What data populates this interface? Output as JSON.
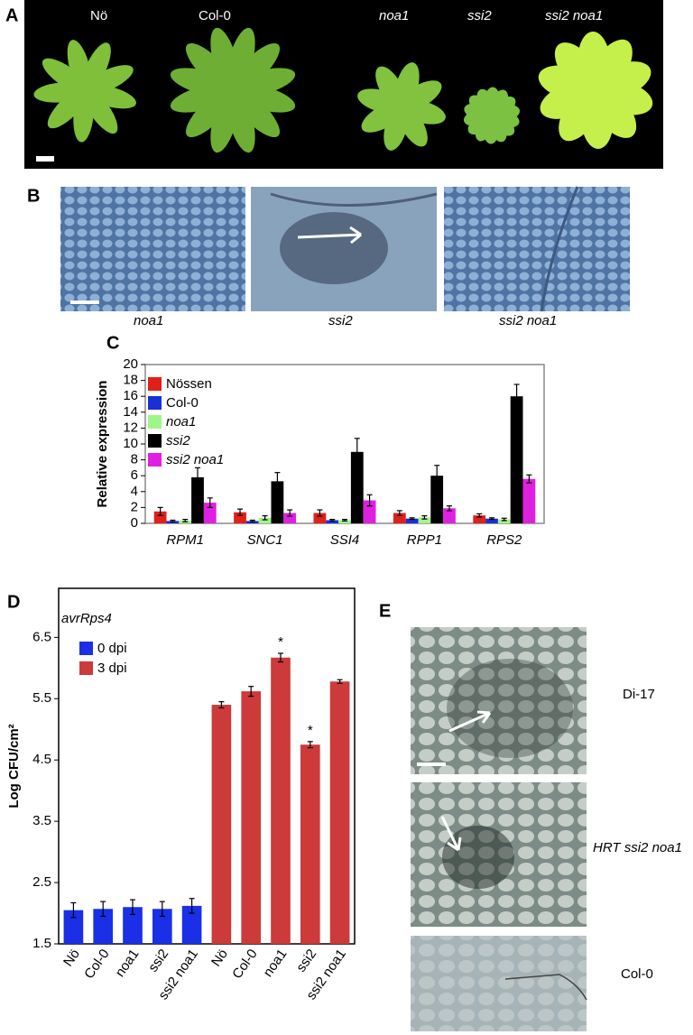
{
  "panel_labels": [
    "A",
    "B",
    "C",
    "D",
    "E"
  ],
  "panel_a": {
    "labels": [
      "Nö",
      "Col-0",
      "noa1",
      "ssi2",
      "ssi2 noa1"
    ]
  },
  "panel_b": {
    "labels": [
      "noa1",
      "ssi2",
      "ssi2 noa1"
    ]
  },
  "panel_e": {
    "labels": [
      "Di-17",
      "HRT ssi2 noa1",
      "Col-0"
    ]
  },
  "chart_data": [
    {
      "type": "bar",
      "y_label": "Relative expression",
      "category_style": "italic",
      "categories": [
        "RPM1",
        "SNC1",
        "SSI4",
        "RPP1",
        "RPS2"
      ],
      "series": [
        {
          "name": "Nössen",
          "color": "#e0201b",
          "values": [
            1.5,
            1.4,
            1.3,
            1.3,
            1.0
          ],
          "errors": [
            0.5,
            0.4,
            0.4,
            0.3,
            0.2
          ]
        },
        {
          "name": "Col-0",
          "color": "#1a2fd6",
          "values": [
            0.3,
            0.3,
            0.4,
            0.6,
            0.6
          ],
          "errors": [
            0.1,
            0.1,
            0.1,
            0.1,
            0.1
          ]
        },
        {
          "name": "noa1",
          "color": "#9ff58a",
          "font_style": "italic",
          "values": [
            0.35,
            0.7,
            0.4,
            0.75,
            0.5
          ],
          "errors": [
            0.15,
            0.25,
            0.1,
            0.2,
            0.15
          ]
        },
        {
          "name": "ssi2",
          "color": "#000000",
          "font_style": "italic",
          "values": [
            5.8,
            5.3,
            9.0,
            6.0,
            16.0
          ],
          "errors": [
            1.2,
            1.1,
            1.7,
            1.3,
            1.5
          ]
        },
        {
          "name": "ssi2 noa1",
          "color": "#e020e0",
          "font_style": "italic",
          "values": [
            2.6,
            1.3,
            2.9,
            1.9,
            5.6
          ],
          "errors": [
            0.6,
            0.4,
            0.7,
            0.3,
            0.5
          ]
        }
      ],
      "ylim": [
        0,
        20
      ],
      "yticks": [
        0,
        2,
        4,
        6,
        8,
        10,
        12,
        14,
        16,
        18,
        20
      ]
    },
    {
      "type": "bar",
      "y_label": "Log CFU/cm²",
      "annotation": "avrRps4",
      "rotate_categories": true,
      "categories": [
        "Nö",
        "Col-0",
        "noa1",
        "ssi2",
        "ssi2 noa1",
        "Nö",
        "Col-0",
        "noa1",
        "ssi2",
        "ssi2 noa1"
      ],
      "series": [
        {
          "name": "0 dpi",
          "color": "#1a2fe6",
          "values": [
            2.05,
            2.07,
            2.1,
            2.07,
            2.12,
            null,
            null,
            null,
            null,
            null
          ],
          "errors": [
            0.12,
            0.12,
            0.12,
            0.12,
            0.12,
            null,
            null,
            null,
            null,
            null
          ]
        },
        {
          "name": "3 dpi",
          "color": "#cc3a3a",
          "values": [
            null,
            null,
            null,
            null,
            null,
            5.4,
            5.62,
            6.17,
            4.75,
            5.78
          ],
          "errors": [
            null,
            null,
            null,
            null,
            null,
            0.05,
            0.08,
            0.07,
            0.05,
            0.03
          ],
          "significance": [
            null,
            null,
            null,
            null,
            null,
            null,
            null,
            "*",
            "*",
            null
          ]
        }
      ],
      "ylim": [
        1.5,
        7.3
      ],
      "yticks": [
        1.5,
        2.5,
        3.5,
        4.5,
        5.5,
        6.5
      ]
    }
  ]
}
